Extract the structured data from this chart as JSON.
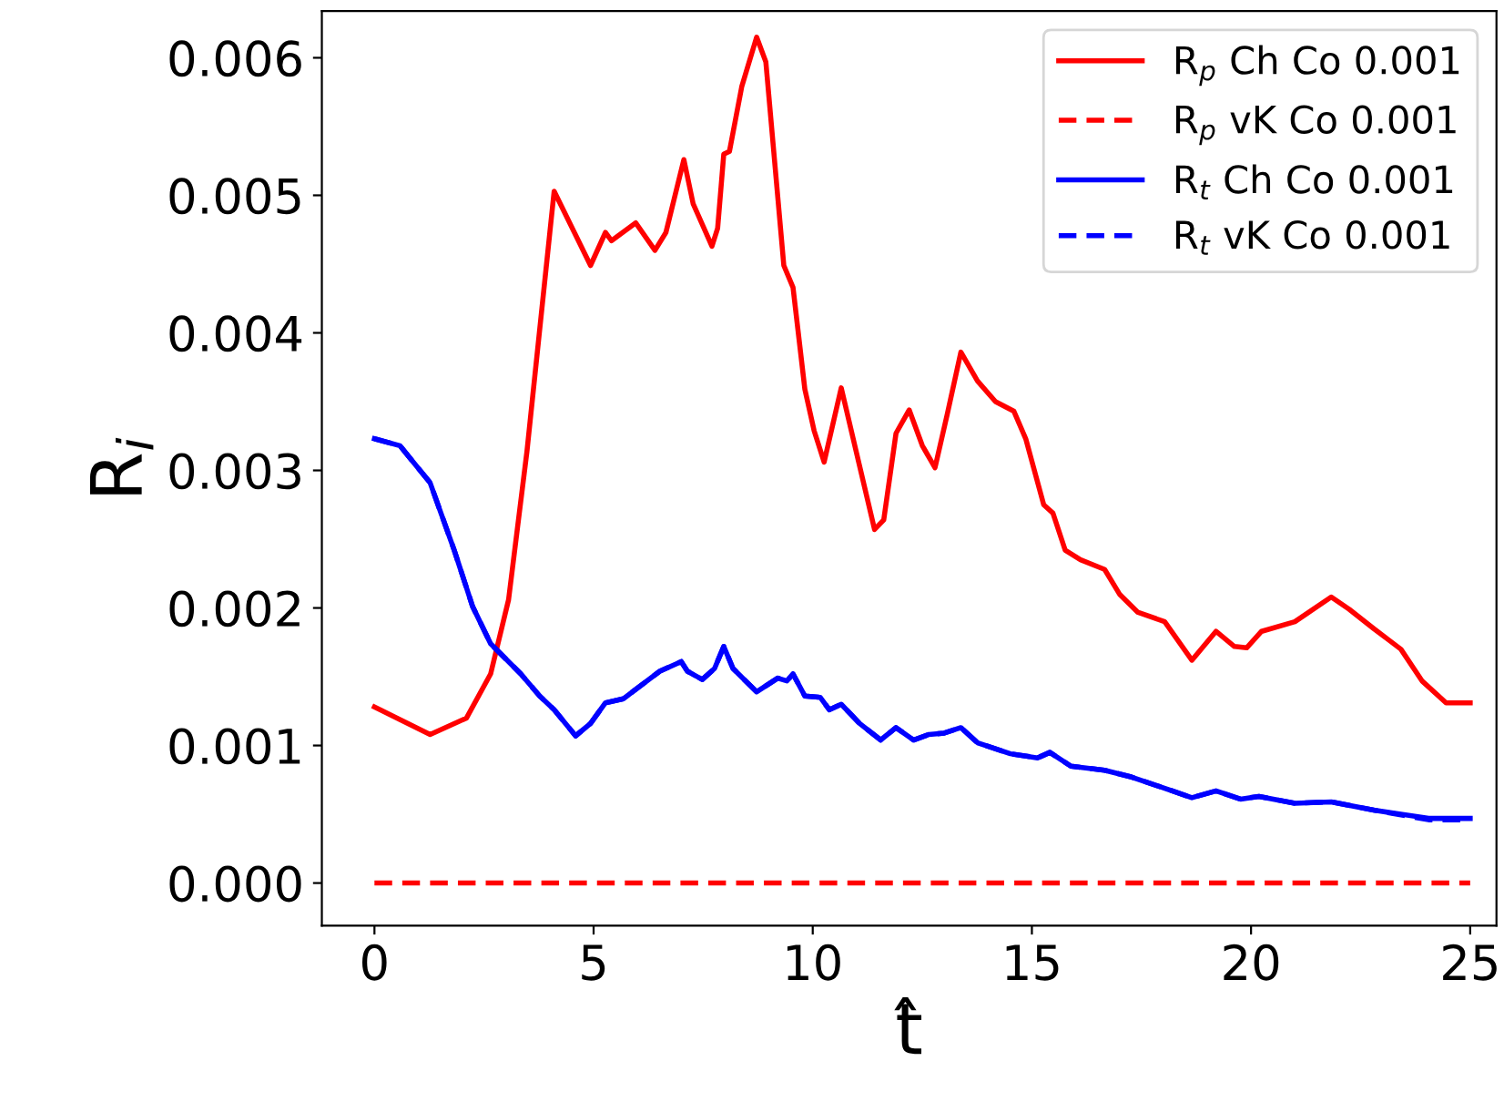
{
  "chart_data": {
    "type": "line",
    "xlabel": "t̂",
    "ylabel": "R$_{i}$",
    "xlim": [
      -1.2,
      25.6
    ],
    "xticks": [
      0,
      5,
      10,
      15,
      20,
      25
    ],
    "ylim": [
      -0.00031,
      0.00634
    ],
    "yticks": [
      {
        "value": 0,
        "label": "0.000"
      },
      {
        "value": 0.001,
        "label": "0.001"
      },
      {
        "value": 0.002,
        "label": "0.002"
      },
      {
        "value": 0.003,
        "label": "0.003"
      },
      {
        "value": 0.004,
        "label": "0.004"
      },
      {
        "value": 0.005,
        "label": "0.005"
      },
      {
        "value": 0.006,
        "label": "0.006"
      }
    ],
    "grid": false,
    "legend": "top right",
    "series": [
      {
        "name": "R$_{p}$ Ch Co 0.001",
        "color": "#ff0000",
        "line_style": "solid",
        "x": [
          0,
          1.27,
          2.1,
          2.65,
          3.06,
          3.48,
          4.1,
          4.93,
          5.27,
          5.41,
          5.96,
          6.4,
          6.65,
          7.06,
          7.27,
          7.7,
          7.83,
          7.97,
          8.1,
          8.38,
          8.72,
          8.93,
          9.34,
          9.55,
          9.82,
          10.03,
          10.26,
          10.65,
          11.41,
          11.62,
          11.9,
          12.2,
          12.5,
          12.79,
          13.07,
          13.38,
          13.76,
          14.17,
          14.59,
          14.86,
          15.27,
          15.48,
          15.76,
          16.11,
          16.66,
          17.0,
          17.41,
          18.03,
          18.65,
          19.2,
          19.62,
          19.9,
          20.24,
          21.0,
          21.83,
          22.24,
          22.8,
          23.42,
          23.9,
          24.45,
          25.0
        ],
        "values": [
          0.00128,
          0.00108,
          0.0012,
          0.00152,
          0.00206,
          0.00314,
          0.00503,
          0.00449,
          0.00473,
          0.00467,
          0.0048,
          0.0046,
          0.00473,
          0.00526,
          0.00494,
          0.00463,
          0.00476,
          0.0053,
          0.00532,
          0.00579,
          0.00615,
          0.00597,
          0.00449,
          0.00433,
          0.00359,
          0.00329,
          0.00306,
          0.0036,
          0.00257,
          0.00264,
          0.00327,
          0.00344,
          0.00318,
          0.00302,
          0.00341,
          0.00386,
          0.00365,
          0.0035,
          0.00343,
          0.00323,
          0.00275,
          0.00269,
          0.00242,
          0.00235,
          0.00228,
          0.0021,
          0.00197,
          0.0019,
          0.00162,
          0.00183,
          0.00172,
          0.00171,
          0.00183,
          0.0019,
          0.00208,
          0.00199,
          0.00185,
          0.0017,
          0.00147,
          0.00131,
          0.00131
        ]
      },
      {
        "name": "R$_{p}$ vK Co 0.001",
        "color": "#ff0000",
        "line_style": "dashed",
        "x": [
          0,
          25
        ],
        "values": [
          0,
          0
        ]
      },
      {
        "name": "R$_{t}$ Ch Co 0.001",
        "color": "#0000ff",
        "line_style": "solid",
        "x": [
          0,
          0.58,
          1.27,
          1.82,
          2.24,
          2.65,
          3.34,
          3.77,
          4.1,
          4.59,
          4.93,
          5.27,
          5.68,
          6.51,
          7.0,
          7.14,
          7.48,
          7.76,
          7.97,
          8.18,
          8.72,
          9.2,
          9.41,
          9.55,
          9.82,
          10.17,
          10.38,
          10.65,
          11.07,
          11.55,
          11.9,
          12.3,
          12.65,
          13.0,
          13.38,
          13.76,
          14.51,
          15.13,
          15.41,
          15.89,
          16.66,
          17.28,
          18.11,
          18.65,
          19.2,
          19.76,
          20.18,
          21.0,
          21.83,
          22.8,
          24.05,
          25.0
        ],
        "values": [
          0.00323,
          0.00318,
          0.00291,
          0.00242,
          0.00201,
          0.00174,
          0.00152,
          0.00136,
          0.00126,
          0.00107,
          0.00116,
          0.00131,
          0.00134,
          0.00154,
          0.00161,
          0.00154,
          0.00148,
          0.00156,
          0.00172,
          0.00156,
          0.00139,
          0.00149,
          0.00147,
          0.00152,
          0.00136,
          0.00135,
          0.00126,
          0.0013,
          0.00116,
          0.00104,
          0.00113,
          0.00104,
          0.00108,
          0.00109,
          0.00113,
          0.00102,
          0.00094,
          0.00091,
          0.00095,
          0.00085,
          0.00082,
          0.00077,
          0.00068,
          0.00062,
          0.00067,
          0.00061,
          0.00063,
          0.00058,
          0.00059,
          0.00053,
          0.00047,
          0.00047
        ]
      },
      {
        "name": "R$_{t}$ vK Co 0.001",
        "color": "#0000ff",
        "line_style": "dashed",
        "x": [
          0,
          0.58,
          1.27,
          1.82,
          2.24,
          2.65,
          3.34,
          3.77,
          4.1,
          4.59,
          4.93,
          5.27,
          5.68,
          6.51,
          7.0,
          7.14,
          7.48,
          7.76,
          7.97,
          8.18,
          8.72,
          9.2,
          9.41,
          9.55,
          9.82,
          10.17,
          10.38,
          10.65,
          11.07,
          11.55,
          11.9,
          12.3,
          12.65,
          13.0,
          13.38,
          13.76,
          14.51,
          15.13,
          15.41,
          15.89,
          16.66,
          17.28,
          18.11,
          18.65,
          19.2,
          19.76,
          20.18,
          21.0,
          21.83,
          22.8,
          24.05,
          25.0
        ],
        "values": [
          0.00323,
          0.00318,
          0.00291,
          0.00242,
          0.00201,
          0.00174,
          0.00152,
          0.00136,
          0.00126,
          0.00107,
          0.00116,
          0.00131,
          0.00134,
          0.00154,
          0.00161,
          0.00154,
          0.00148,
          0.00156,
          0.00172,
          0.00156,
          0.00139,
          0.00149,
          0.00147,
          0.00152,
          0.00136,
          0.00135,
          0.00126,
          0.0013,
          0.00116,
          0.00104,
          0.00113,
          0.00104,
          0.00108,
          0.00109,
          0.00113,
          0.00102,
          0.00094,
          0.00091,
          0.00095,
          0.00085,
          0.00082,
          0.00077,
          0.00068,
          0.00062,
          0.00067,
          0.00061,
          0.00063,
          0.00058,
          0.00059,
          0.00053,
          0.00046,
          0.00046
        ]
      }
    ]
  }
}
